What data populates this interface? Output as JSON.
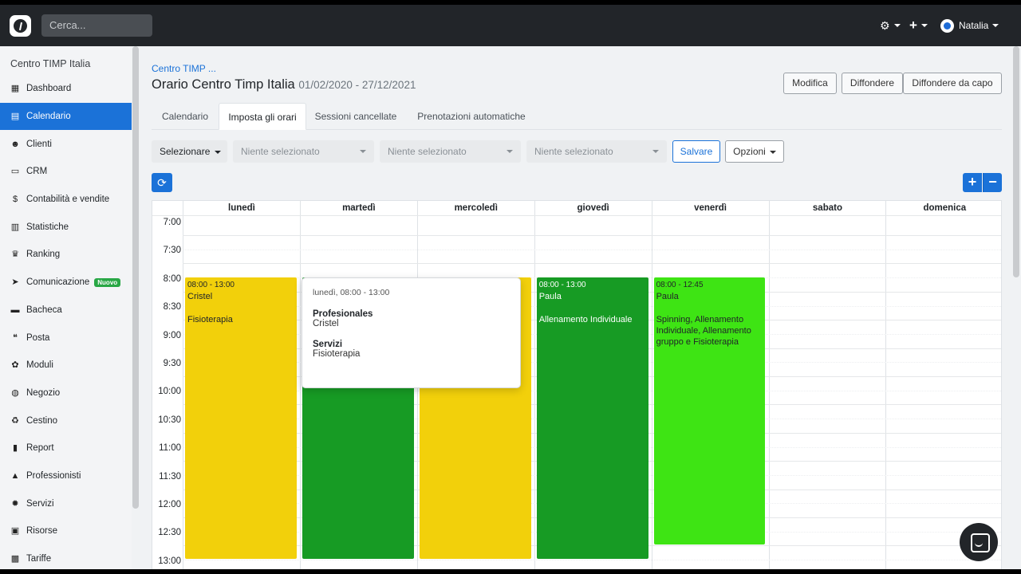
{
  "topbar": {
    "search_placeholder": "Cerca...",
    "user_name": "Natalia"
  },
  "sidebar": {
    "org_name": "Centro TIMP Italia",
    "items": [
      {
        "label": "Dashboard",
        "icon": "grid-icon",
        "active": false
      },
      {
        "label": "Calendario",
        "icon": "calendar-icon",
        "active": true
      },
      {
        "label": "Clienti",
        "icon": "users-icon",
        "active": false
      },
      {
        "label": "CRM",
        "icon": "crm-icon",
        "active": false
      },
      {
        "label": "Contabilità e vendite",
        "icon": "dollar-icon",
        "active": false
      },
      {
        "label": "Statistiche",
        "icon": "chart-icon",
        "active": false
      },
      {
        "label": "Ranking",
        "icon": "trophy-icon",
        "active": false
      },
      {
        "label": "Comunicazione",
        "icon": "send-icon",
        "active": false,
        "badge": "Nuovo"
      },
      {
        "label": "Bacheca",
        "icon": "board-icon",
        "active": false
      },
      {
        "label": "Posta",
        "icon": "chat-bubbles-icon",
        "active": false
      },
      {
        "label": "Moduli",
        "icon": "modules-icon",
        "active": false
      },
      {
        "label": "Negozio",
        "icon": "shop-icon",
        "active": false
      },
      {
        "label": "Cestino",
        "icon": "recycle-icon",
        "active": false
      },
      {
        "label": "Report",
        "icon": "report-icon",
        "active": false
      },
      {
        "label": "Professionisti",
        "icon": "graduation-icon",
        "active": false
      },
      {
        "label": "Servizi",
        "icon": "cog-icon",
        "active": false
      },
      {
        "label": "Risorse",
        "icon": "archive-icon",
        "active": false
      },
      {
        "label": "Tariffe",
        "icon": "money-icon",
        "active": false
      }
    ]
  },
  "header": {
    "breadcrumb": "Centro TIMP ...",
    "title": "Orario Centro Timp Italia",
    "date_range": "01/02/2020 - 27/12/2021",
    "buttons": {
      "edit": "Modifica",
      "spread": "Diffondere",
      "spread_from_start": "Diffondere da capo"
    }
  },
  "tabs": [
    "Calendario",
    "Imposta gli orari",
    "Sessioni cancellate",
    "Prenotazioni automatiche"
  ],
  "filters": {
    "select_label": "Selezionare",
    "dropdown_1": "Niente selezionato",
    "dropdown_2": "Niente selezionato",
    "dropdown_3": "Niente selezionato",
    "save": "Salvare",
    "options": "Opzioni"
  },
  "controls": {
    "plus": "+",
    "minus": "−",
    "refresh_icon": "refresh-icon"
  },
  "calendar": {
    "days": [
      "lunedì",
      "martedì",
      "mercoledì",
      "giovedì",
      "venerdì",
      "sabato",
      "domenica"
    ],
    "times": [
      "7:00",
      "7:30",
      "8:00",
      "8:30",
      "9:00",
      "9:30",
      "10:00",
      "10:30",
      "11:00",
      "11:30",
      "12:00",
      "12:30",
      "13:00"
    ],
    "events": [
      {
        "day": 0,
        "time": "08:00 - 13:00",
        "person": "Cristel",
        "service": "Fisioterapia",
        "color": "#f2d00b",
        "text_color": "#212529"
      },
      {
        "day": 1,
        "time": "",
        "person": "",
        "service": "",
        "color": "#179b24",
        "text_color": "#ffffff"
      },
      {
        "day": 2,
        "time": "",
        "person": "",
        "service": "",
        "color": "#f2d00b",
        "text_color": "#212529"
      },
      {
        "day": 3,
        "time": "08:00 - 13:00",
        "person": "Paula",
        "service": "Allenamento Individuale",
        "color": "#179b24",
        "text_color": "#ffffff"
      },
      {
        "day": 4,
        "time": "08:00 - 12:45",
        "person": "Paula",
        "service": "Spinning, Allenamento Individuale, Allenamento gruppo e Fisioterapia",
        "color": "#3ee414",
        "text_color": "#212529"
      }
    ]
  },
  "popover": {
    "header": "lunedì, 08:00 - 13:00",
    "professionals_label": "Profesionales",
    "professionals_value": "Cristel",
    "services_label": "Servizi",
    "services_value": "Fisioterapia"
  }
}
